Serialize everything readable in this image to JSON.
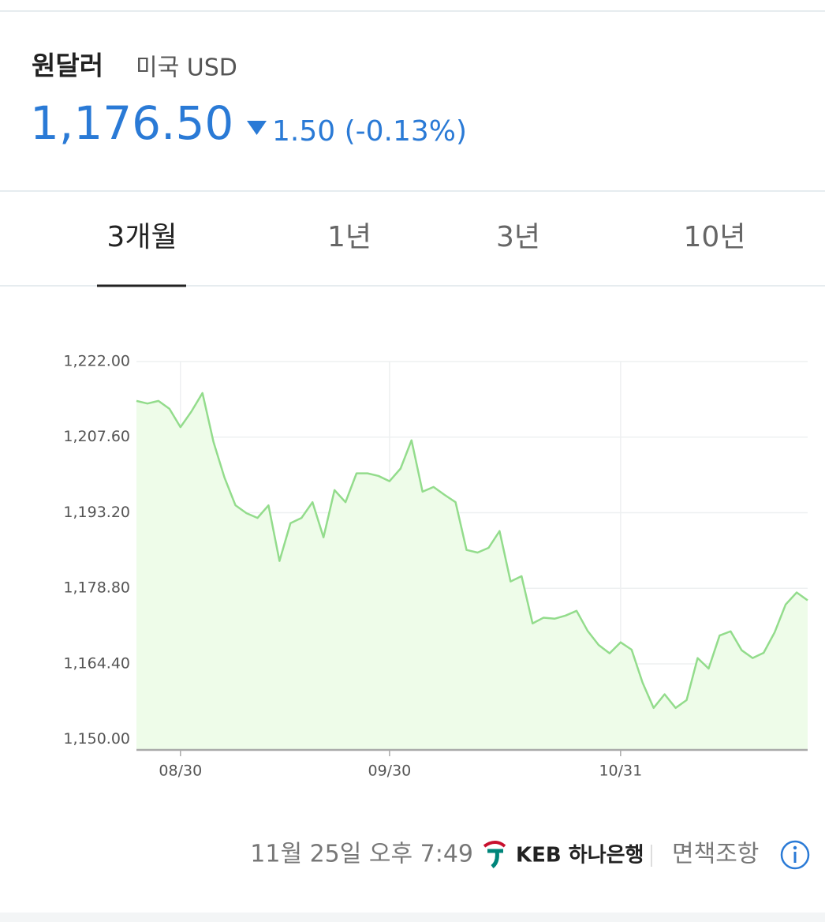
{
  "header": {
    "title": "원달러",
    "subtitle": "미국 USD",
    "price": "1,176.50",
    "change": "1.50 (-0.13%)"
  },
  "tabs": [
    "3개월",
    "1년",
    "3년",
    "10년"
  ],
  "chart_data": {
    "type": "line",
    "categories": [
      null,
      null,
      null,
      null,
      "08/30",
      null,
      null,
      null,
      null,
      null,
      null,
      null,
      null,
      null,
      null,
      null,
      null,
      null,
      null,
      null,
      null,
      null,
      null,
      "09/30",
      null,
      null,
      null,
      null,
      null,
      null,
      null,
      null,
      null,
      null,
      null,
      null,
      null,
      null,
      null,
      null,
      null,
      null,
      null,
      null,
      "10/31",
      null,
      null,
      null,
      null,
      null,
      null,
      null,
      null,
      null,
      null,
      null,
      null,
      null,
      null,
      null,
      null,
      null
    ],
    "values": [
      1214.5,
      1214.0,
      1214.5,
      1213.0,
      1209.5,
      1212.5,
      1216.0,
      1206.7,
      1199.9,
      1194.6,
      1193.1,
      1192.2,
      1194.6,
      1184.0,
      1191.2,
      1192.2,
      1195.2,
      1188.5,
      1197.5,
      1195.2,
      1200.7,
      1200.7,
      1200.2,
      1199.2,
      1201.6,
      1207.0,
      1197.2,
      1198.1,
      1196.6,
      1195.2,
      1186.1,
      1185.6,
      1186.5,
      1189.7,
      1180.1,
      1181.1,
      1172.1,
      1173.2,
      1173.0,
      1173.6,
      1174.5,
      1170.7,
      1168.0,
      1166.4,
      1168.5,
      1167.1,
      1160.8,
      1156.0,
      1158.6,
      1156.0,
      1157.5,
      1165.5,
      1163.5,
      1169.8,
      1170.6,
      1167.0,
      1165.5,
      1166.5,
      1170.4,
      1175.7,
      1178.0,
      1176.5
    ],
    "color": "#93dc8c",
    "area_color": "#eefce9",
    "ylim": [
      1148,
      1222
    ],
    "yticks": [
      {
        "value": 1150,
        "label": "1,150.00"
      },
      {
        "value": 1164.4,
        "label": "1,164.40"
      },
      {
        "value": 1178.8,
        "label": "1,178.80"
      },
      {
        "value": 1193.2,
        "label": "1,193.20"
      },
      {
        "value": 1207.6,
        "label": "1,207.60"
      },
      {
        "value": 1222,
        "label": "1,222.00"
      }
    ],
    "grid": true
  },
  "footer": {
    "time": "11월 25일 오후 7:49",
    "logo": "KEB 하나은행",
    "disclaimer": "면책조항"
  }
}
